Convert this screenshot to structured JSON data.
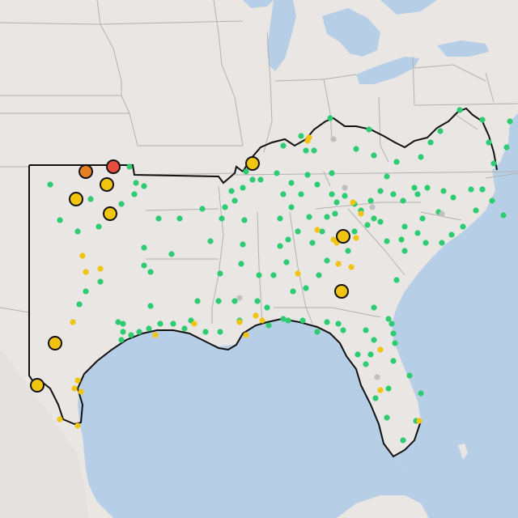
{
  "map": {
    "colors": {
      "land": "#e9e6e3",
      "water": "#b7cfe6",
      "border": "#b3b3b3",
      "outline": "#111111",
      "station_normal": "#2ecc71",
      "station_moderate": "#f1c40f",
      "station_inactive": "#c0c0c0",
      "station_high": "#e67e22",
      "station_severe": "#e74c3c"
    }
  }
}
